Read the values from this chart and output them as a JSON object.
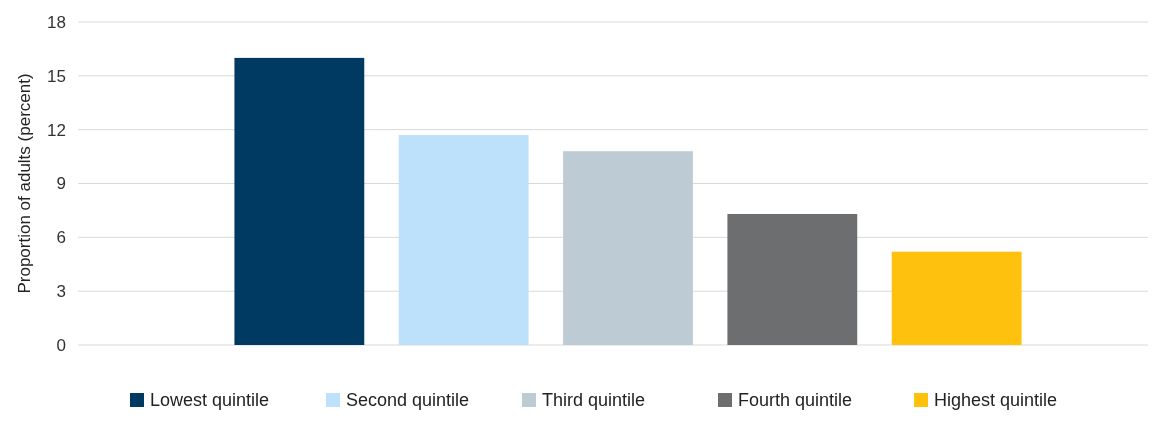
{
  "chart_data": {
    "type": "bar",
    "ylabel": "Proportion of adults (percent)",
    "categories": [
      null,
      null,
      null,
      null,
      null
    ],
    "series": [
      {
        "name": "Lowest quintile",
        "color": "#003a63",
        "values": [
          16.0,
          null,
          null,
          null,
          null
        ]
      },
      {
        "name": "Second quintile",
        "color": "#bde0fb",
        "values": [
          null,
          11.7,
          null,
          null,
          null
        ]
      },
      {
        "name": "Third quintile",
        "color": "#bccbd4",
        "values": [
          null,
          null,
          10.8,
          null,
          null
        ]
      },
      {
        "name": "Fourth quintile",
        "color": "#6d6e70",
        "values": [
          null,
          null,
          null,
          7.3,
          null
        ]
      },
      {
        "name": "Highest quintile",
        "color": "#fdc10e",
        "values": [
          null,
          null,
          null,
          null,
          5.2
        ]
      }
    ],
    "ylim": [
      0,
      18
    ],
    "yticks": [
      0,
      3,
      6,
      9,
      12,
      15,
      18
    ],
    "grid": "y",
    "legend": "bottom",
    "stacked": true
  }
}
